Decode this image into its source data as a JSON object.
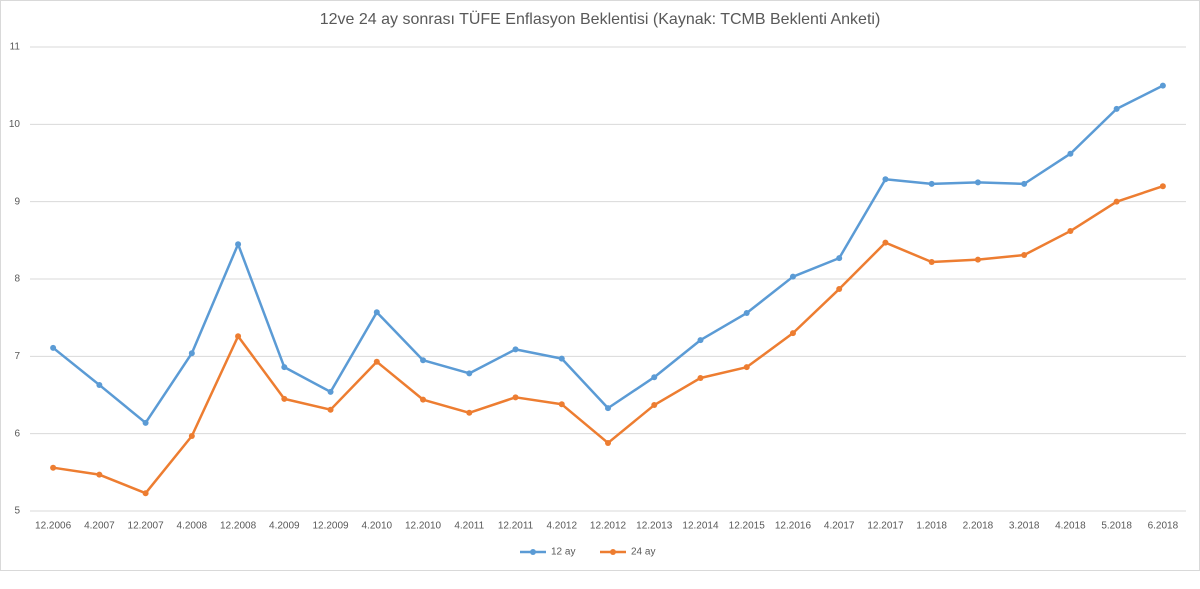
{
  "chart_data": {
    "type": "line",
    "title": "12ve 24 ay sonrası TÜFE Enflasyon Beklentisi (Kaynak: TCMB Beklenti Anketi)",
    "categories": [
      "12.2006",
      "4.2007",
      "12.2007",
      "4.2008",
      "12.2008",
      "4.2009",
      "12.2009",
      "4.2010",
      "12.2010",
      "4.2011",
      "12.2011",
      "4.2012",
      "12.2012",
      "12.2013",
      "12.2014",
      "12.2015",
      "12.2016",
      "4.2017",
      "12.2017",
      "1.2018",
      "2.2018",
      "3.2018",
      "4.2018",
      "5.2018",
      "6.2018"
    ],
    "series": [
      {
        "name": "12 ay",
        "color": "#5b9bd5",
        "values": [
          7.11,
          6.63,
          6.14,
          7.04,
          8.45,
          6.86,
          6.54,
          7.57,
          6.95,
          6.78,
          7.09,
          6.97,
          6.33,
          6.73,
          7.21,
          7.56,
          8.03,
          8.27,
          9.29,
          9.23,
          9.25,
          9.23,
          9.62,
          10.2,
          10.5
        ]
      },
      {
        "name": "24 ay",
        "color": "#ed7d31",
        "values": [
          5.56,
          5.47,
          5.23,
          5.97,
          7.26,
          6.45,
          6.31,
          6.93,
          6.44,
          6.27,
          6.47,
          6.38,
          5.88,
          6.37,
          6.72,
          6.86,
          7.3,
          7.87,
          8.47,
          8.22,
          8.25,
          8.31,
          8.62,
          9.0,
          9.2
        ]
      }
    ],
    "ylim": [
      5,
      11
    ],
    "yticks": [
      5,
      6,
      7,
      8,
      9,
      10,
      11
    ],
    "grid": true,
    "legend": "bottom"
  }
}
